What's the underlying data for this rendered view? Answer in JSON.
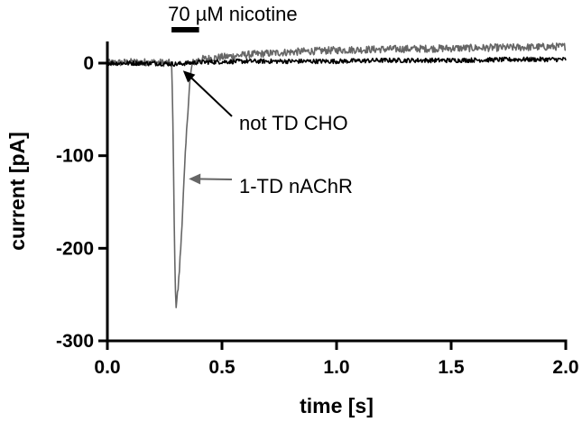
{
  "chart_data": {
    "type": "line",
    "title": "",
    "xlabel": "time [s]",
    "ylabel": "current [pA]",
    "xlim": [
      0,
      2.0
    ],
    "ylim": [
      -300,
      20
    ],
    "x_ticks": [
      0.0,
      0.5,
      1.0,
      1.5,
      2.0
    ],
    "x_tick_labels": [
      "0.0",
      "0.5",
      "1.0",
      "1.5",
      "2.0"
    ],
    "y_ticks": [
      0,
      -100,
      -200,
      -300
    ],
    "y_tick_labels": [
      "0",
      "-100",
      "-200",
      "-300"
    ],
    "grid": false,
    "legend": "none",
    "stimulus": {
      "label": "70 µM nicotine",
      "start": 0.28,
      "end": 0.4
    },
    "series": [
      {
        "name": "1-TD nAChR",
        "color": "#666666",
        "points": [
          [
            0.0,
            0
          ],
          [
            0.1,
            1
          ],
          [
            0.2,
            1
          ],
          [
            0.28,
            0
          ],
          [
            0.285,
            -50
          ],
          [
            0.29,
            -140
          ],
          [
            0.295,
            -230
          ],
          [
            0.3,
            -262
          ],
          [
            0.31,
            -240
          ],
          [
            0.32,
            -200
          ],
          [
            0.33,
            -150
          ],
          [
            0.34,
            -100
          ],
          [
            0.35,
            -55
          ],
          [
            0.36,
            -20
          ],
          [
            0.37,
            0
          ],
          [
            0.4,
            4
          ],
          [
            0.6,
            9
          ],
          [
            0.8,
            12
          ],
          [
            1.0,
            14
          ],
          [
            1.2,
            15
          ],
          [
            1.5,
            16
          ],
          [
            1.8,
            17
          ],
          [
            2.0,
            18
          ]
        ]
      },
      {
        "name": "not TD CHO",
        "color": "#000000",
        "points": [
          [
            0.0,
            0
          ],
          [
            0.2,
            0
          ],
          [
            0.3,
            -1
          ],
          [
            0.4,
            1
          ],
          [
            0.6,
            2
          ],
          [
            0.8,
            2
          ],
          [
            1.0,
            2
          ],
          [
            1.2,
            3
          ],
          [
            1.5,
            3
          ],
          [
            1.8,
            4
          ],
          [
            2.0,
            4
          ]
        ]
      }
    ],
    "annotations": [
      {
        "text": "not TD CHO",
        "target": [
          0.33,
          -8
        ]
      },
      {
        "text": "1-TD nAChR",
        "target": [
          0.355,
          -125
        ]
      }
    ]
  }
}
